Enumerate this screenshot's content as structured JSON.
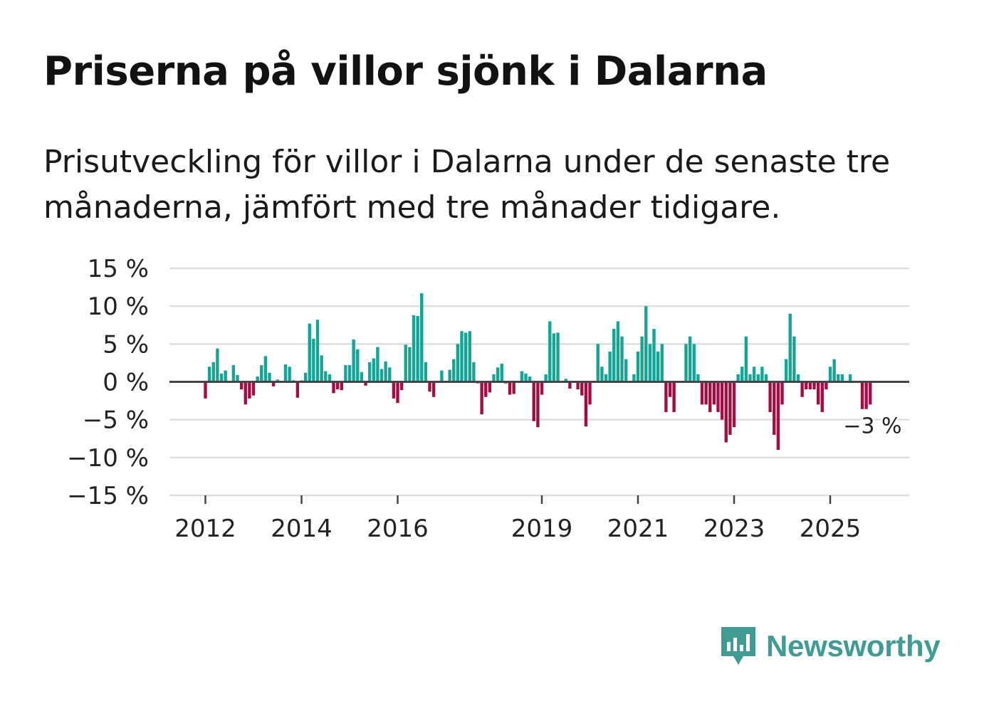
{
  "title": "Priserna på villor sjönk i Dalarna",
  "subtitle": "Prisutveckling för villor i Dalarna under de senaste tre månaderna, jämfört med tre månader tidigare.",
  "brand": {
    "name": "Newsworthy",
    "color": "#3f9b94",
    "icon": "newsworthy-logo-icon"
  },
  "colors": {
    "positive": "#13a596",
    "negative": "#a30d45",
    "grid": "#dddddd",
    "zero": "#444444"
  },
  "chart_data": {
    "type": "bar",
    "title": "Priserna på villor sjönk i Dalarna",
    "xlabel": "",
    "ylabel": "",
    "ylim": [
      -15,
      15
    ],
    "yticks": [
      15,
      10,
      5,
      0,
      -5,
      -10,
      -15
    ],
    "ytick_labels": [
      "15 %",
      "10 %",
      "5 %",
      "0 %",
      "−5 %",
      "−10 %",
      "−15 %"
    ],
    "xticks": [
      2012,
      2014,
      2016,
      2019,
      2021,
      2023,
      2025
    ],
    "xtick_labels": [
      "2012",
      "2014",
      "2016",
      "2019",
      "2021",
      "2023",
      "2025"
    ],
    "x_start": 2012.0,
    "x_step": 0.0833333,
    "annotation": {
      "label": "−3 %",
      "value": -3
    },
    "values": [
      -2.2,
      2.0,
      2.6,
      4.4,
      1.1,
      1.5,
      0.1,
      2.2,
      0.9,
      -1.0,
      -3.0,
      -2.2,
      -1.8,
      0.7,
      2.2,
      3.4,
      1.2,
      -0.6,
      0.3,
      0.1,
      2.3,
      2.0,
      0.2,
      -2.1,
      0.2,
      1.2,
      7.7,
      5.7,
      8.2,
      3.5,
      1.4,
      1.0,
      -1.5,
      -1.0,
      -1.1,
      2.2,
      2.2,
      5.6,
      4.3,
      1.3,
      -0.5,
      2.6,
      3.1,
      4.6,
      1.7,
      2.7,
      1.9,
      -2.2,
      -2.8,
      -1.1,
      4.9,
      4.6,
      8.8,
      8.7,
      11.7,
      2.6,
      -1.3,
      -2.0,
      0.1,
      1.5,
      0.1,
      1.6,
      3.0,
      5.0,
      6.7,
      6.5,
      6.7,
      2.6,
      -0.2,
      -4.3,
      -2.0,
      -1.4,
      1.0,
      1.9,
      2.4,
      -0.2,
      -1.7,
      -1.6,
      0.1,
      1.4,
      1.1,
      0.7,
      -5.2,
      -6.0,
      -1.7,
      1.0,
      8.0,
      6.4,
      6.5,
      0.1,
      0.4,
      -0.9,
      -0.1,
      -1.0,
      -1.8,
      -5.9,
      -3.0,
      0.1,
      5.0,
      2.0,
      1.0,
      4.0,
      7.0,
      8.0,
      6.0,
      3.0,
      0.1,
      1.0,
      4.0,
      6.0,
      10.0,
      5.0,
      7.0,
      4.0,
      5.0,
      -4.0,
      -2.0,
      -4.0,
      0.1,
      0.1,
      5.0,
      6.0,
      5.0,
      1.0,
      -3.0,
      -3.0,
      -4.0,
      -3.0,
      -4.0,
      -5.0,
      -8.0,
      -7.0,
      -6.0,
      1.0,
      2.0,
      6.0,
      1.0,
      2.0,
      1.0,
      2.0,
      1.0,
      -4.0,
      -7.0,
      -9.0,
      -3.0,
      3.0,
      9.0,
      6.0,
      1.0,
      -2.0,
      -1.0,
      -1.0,
      -1.0,
      -3.0,
      -4.0,
      -1.0,
      2.0,
      3.0,
      1.0,
      1.0,
      0.1,
      1.0,
      0.1,
      0.1,
      -3.6,
      -3.6,
      -3.0
    ]
  }
}
